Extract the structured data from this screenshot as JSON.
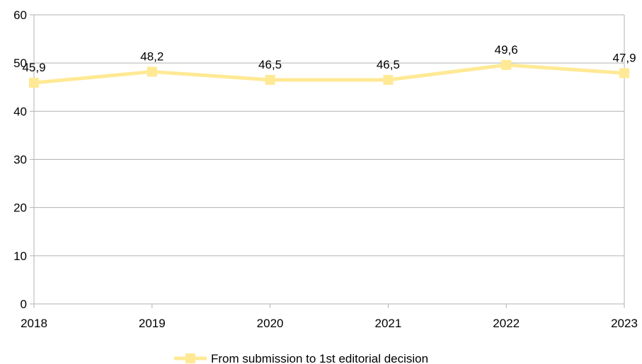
{
  "chart_data": {
    "type": "line",
    "title": "",
    "xlabel": "",
    "ylabel": "",
    "categories": [
      "2018",
      "2019",
      "2020",
      "2021",
      "2022",
      "2023"
    ],
    "series": [
      {
        "name": "From submission to 1st editorial decision",
        "values": [
          45.9,
          48.2,
          46.5,
          46.5,
          49.6,
          47.9
        ],
        "data_labels": [
          "45,9",
          "48,2",
          "46,5",
          "46,5",
          "49,6",
          "47,9"
        ],
        "color": "#ffe994",
        "marker": "square"
      }
    ],
    "ylim": [
      0,
      60
    ],
    "yticks": [
      "0",
      "10",
      "20",
      "30",
      "40",
      "50",
      "60"
    ],
    "grid": true,
    "legend_position": "bottom"
  }
}
